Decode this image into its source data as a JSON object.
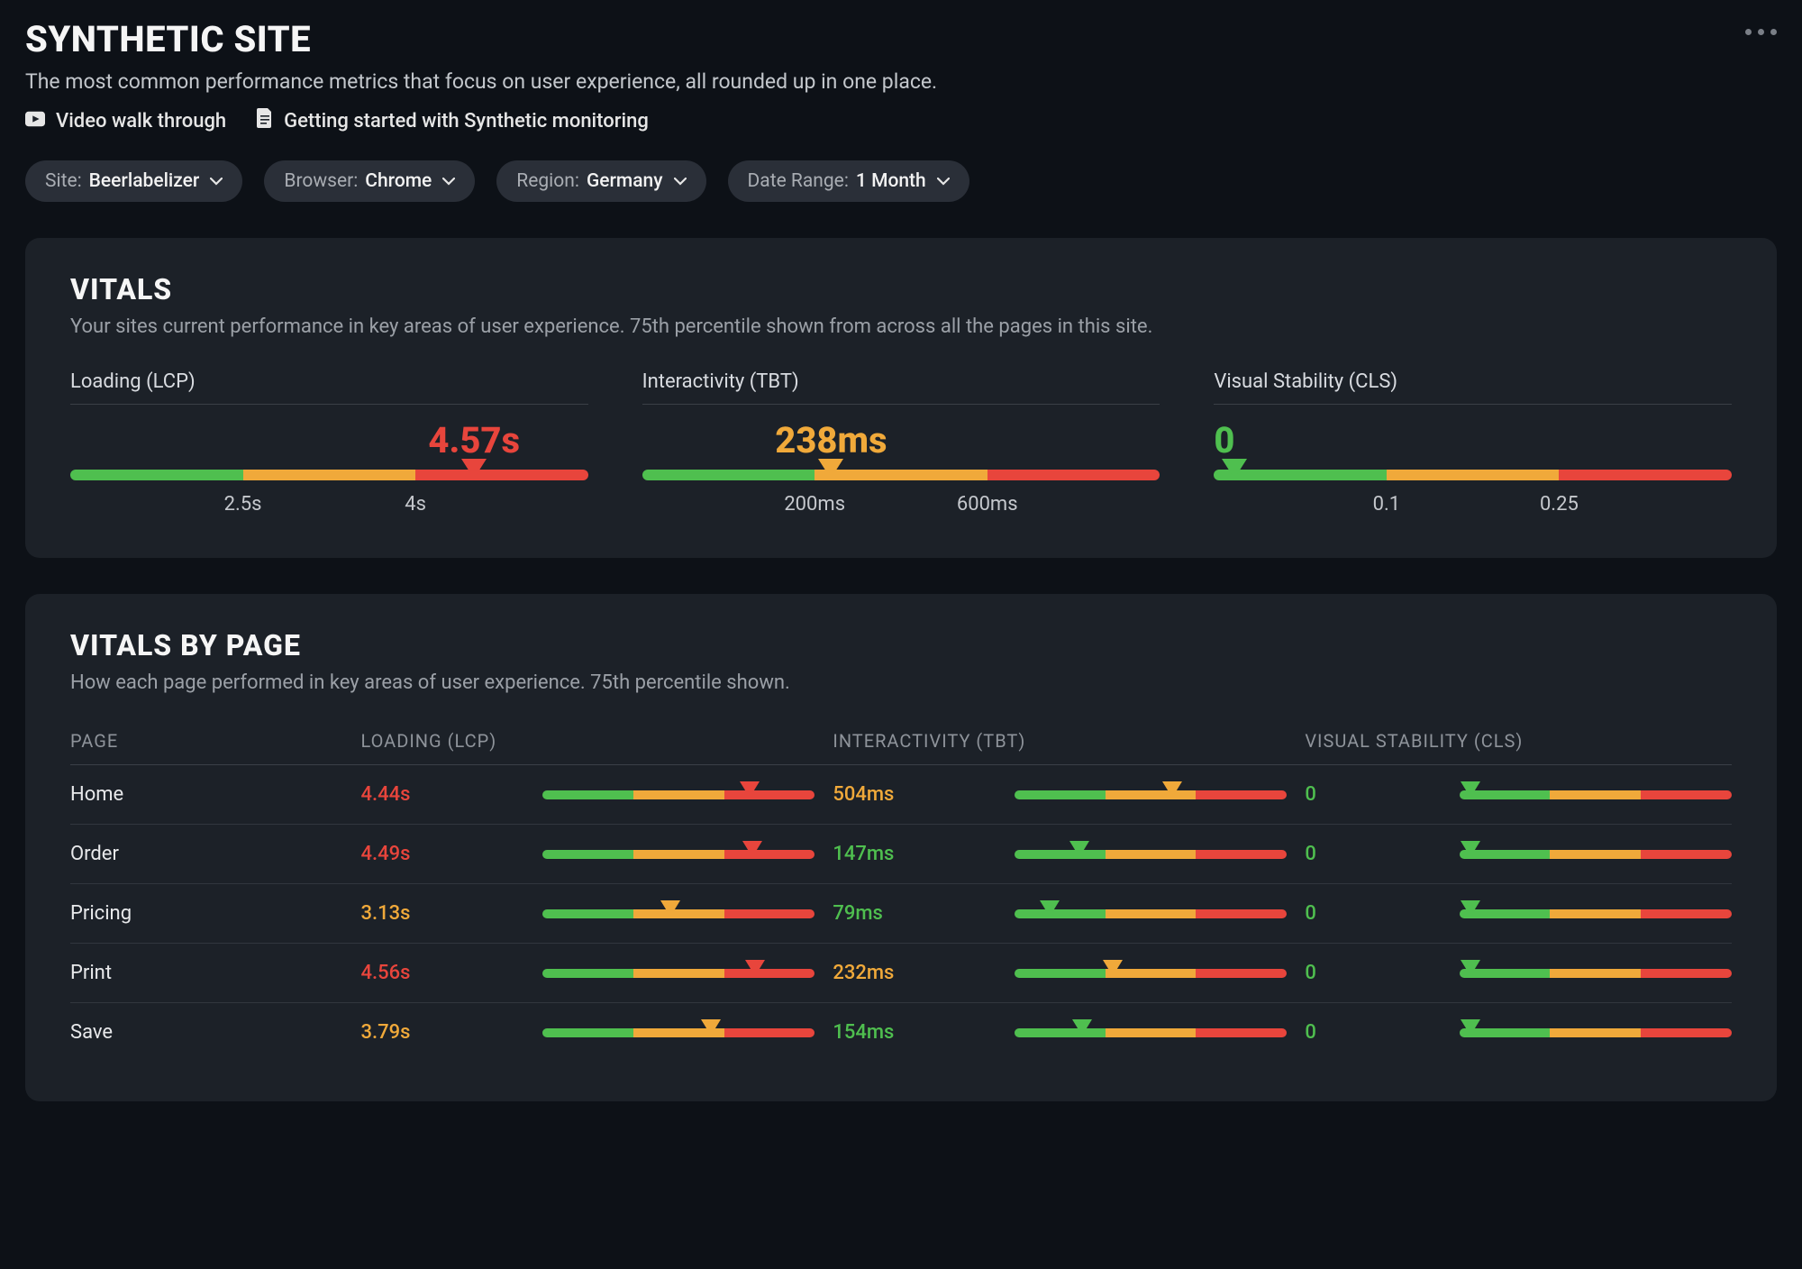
{
  "colors": {
    "good": "#4fbf4f",
    "warn": "#f0a93a",
    "bad": "#e8453c",
    "text_muted": "#9ba0a7",
    "text": "#e6e6e6",
    "card_bg": "#1c2128",
    "page_bg": "#0d1117",
    "divider": "#3a3f47"
  },
  "header": {
    "title": "SYNTHETIC SITE",
    "subtitle": "The most common performance metrics that focus on user experience, all rounded up in one place.",
    "links": {
      "video": "Video walk through",
      "guide": "Getting started with Synthetic monitoring"
    }
  },
  "filters": {
    "site": {
      "label": "Site:",
      "value": "Beerlabelizer"
    },
    "browser": {
      "label": "Browser:",
      "value": "Chrome"
    },
    "region": {
      "label": "Region:",
      "value": "Germany"
    },
    "date_range": {
      "label": "Date Range:",
      "value": "1 Month"
    }
  },
  "vitals": {
    "title": "VITALS",
    "subtitle": "Your sites current performance in key areas of user experience. 75th percentile shown from across all the pages in this site.",
    "segments_pct": {
      "good": 33.33,
      "warn": 33.33,
      "bad": 33.34
    },
    "metrics": {
      "lcp": {
        "label": "Loading (LCP)",
        "value_display": "4.57s",
        "numeric": 4.57,
        "status": "bad",
        "thresholds": {
          "good_max": 2.5,
          "warn_max": 4.0
        },
        "ticks": [
          {
            "label": "2.5s",
            "pos_pct": 33.33
          },
          {
            "label": "4s",
            "pos_pct": 66.66
          }
        ],
        "marker_pos_pct": 78,
        "value_pos_pct": 78,
        "value_align": "center"
      },
      "tbt": {
        "label": "Interactivity (TBT)",
        "value_display": "238ms",
        "numeric": 238,
        "status": "warn",
        "thresholds": {
          "good_max": 200,
          "warn_max": 600
        },
        "ticks": [
          {
            "label": "200ms",
            "pos_pct": 33.33
          },
          {
            "label": "600ms",
            "pos_pct": 66.66
          }
        ],
        "marker_pos_pct": 36.5,
        "value_pos_pct": 36.5,
        "value_align": "center"
      },
      "cls": {
        "label": "Visual Stability (CLS)",
        "value_display": "0",
        "numeric": 0,
        "status": "good",
        "thresholds": {
          "good_max": 0.1,
          "warn_max": 0.25
        },
        "ticks": [
          {
            "label": "0.1",
            "pos_pct": 33.33
          },
          {
            "label": "0.25",
            "pos_pct": 66.66
          }
        ],
        "marker_pos_pct": 4,
        "value_pos_pct": 0,
        "value_align": "left"
      }
    }
  },
  "vitals_by_page": {
    "title": "VITALS BY PAGE",
    "subtitle": "How each page performed in key areas of user experience. 75th percentile shown.",
    "columns": {
      "page": "PAGE",
      "lcp": "LOADING (LCP)",
      "tbt": "INTERACTIVITY (TBT)",
      "cls": "VISUAL STABILITY (CLS)"
    },
    "segments_pct": {
      "good": 33.33,
      "warn": 33.33,
      "bad": 33.34
    },
    "rows": [
      {
        "page": "Home",
        "lcp": {
          "display": "4.44s",
          "status": "bad",
          "marker_pos_pct": 76
        },
        "tbt": {
          "display": "504ms",
          "status": "warn",
          "marker_pos_pct": 58
        },
        "cls": {
          "display": "0",
          "status": "good",
          "marker_pos_pct": 4
        }
      },
      {
        "page": "Order",
        "lcp": {
          "display": "4.49s",
          "status": "bad",
          "marker_pos_pct": 77
        },
        "tbt": {
          "display": "147ms",
          "status": "good",
          "marker_pos_pct": 24
        },
        "cls": {
          "display": "0",
          "status": "good",
          "marker_pos_pct": 4
        }
      },
      {
        "page": "Pricing",
        "lcp": {
          "display": "3.13s",
          "status": "warn",
          "marker_pos_pct": 47
        },
        "tbt": {
          "display": "79ms",
          "status": "good",
          "marker_pos_pct": 13
        },
        "cls": {
          "display": "0",
          "status": "good",
          "marker_pos_pct": 4
        }
      },
      {
        "page": "Print",
        "lcp": {
          "display": "4.56s",
          "status": "bad",
          "marker_pos_pct": 78
        },
        "tbt": {
          "display": "232ms",
          "status": "warn",
          "marker_pos_pct": 36
        },
        "cls": {
          "display": "0",
          "status": "good",
          "marker_pos_pct": 4
        }
      },
      {
        "page": "Save",
        "lcp": {
          "display": "3.79s",
          "status": "warn",
          "marker_pos_pct": 62
        },
        "tbt": {
          "display": "154ms",
          "status": "good",
          "marker_pos_pct": 25
        },
        "cls": {
          "display": "0",
          "status": "good",
          "marker_pos_pct": 4
        }
      }
    ]
  }
}
